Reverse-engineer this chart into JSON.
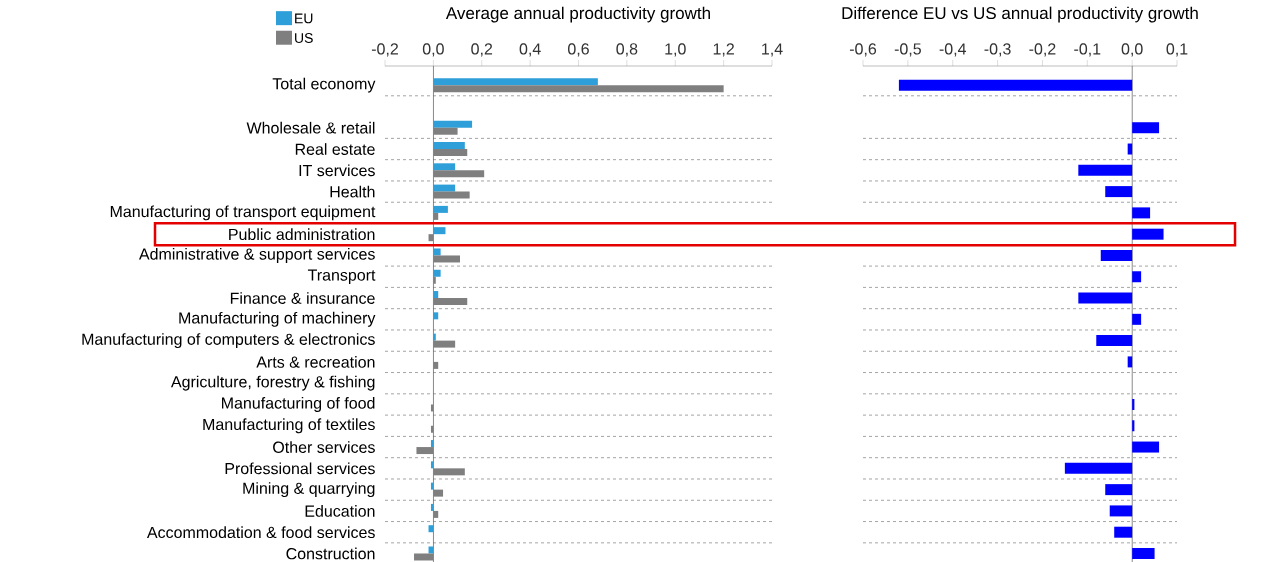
{
  "chart_data": [
    {
      "type": "bar",
      "orientation": "horizontal",
      "title": "Average annual productivity growth",
      "categories": [
        "Total economy",
        null,
        "Wholesale & retail",
        "Real estate",
        "IT services",
        "Health",
        "Manufacturing of transport equipment",
        "Public administration",
        "Administrative & support services",
        "Transport",
        "Finance & insurance",
        "Manufacturing of machinery",
        "Manufacturing of computers & electronics",
        "Arts & recreation",
        "Agriculture, forestry & fishing",
        "Manufacturing of food",
        "Manufacturing of textiles",
        "Other services",
        "Professional services",
        "Mining & quarrying",
        "Education",
        "Accommodation & food services",
        "Construction"
      ],
      "series": [
        {
          "name": "EU",
          "color": "#2e9fd8",
          "values": [
            0.68,
            null,
            0.16,
            0.13,
            0.09,
            0.09,
            0.06,
            0.05,
            0.03,
            0.03,
            0.02,
            0.02,
            0.01,
            0.0,
            0.0,
            0.0,
            0.0,
            -0.01,
            -0.01,
            -0.01,
            -0.01,
            -0.02,
            -0.02
          ]
        },
        {
          "name": "US",
          "color": "#7f7f7f",
          "values": [
            1.2,
            null,
            0.1,
            0.14,
            0.21,
            0.15,
            0.02,
            -0.02,
            0.11,
            0.01,
            0.14,
            0.0,
            0.09,
            0.02,
            0.0,
            -0.01,
            -0.01,
            -0.07,
            0.13,
            0.04,
            0.02,
            0.0,
            -0.08
          ]
        }
      ],
      "xlim": [
        -0.2,
        1.4
      ],
      "xticks": [
        {
          "value": -0.2,
          "label": "-0,2"
        },
        {
          "value": 0,
          "label": "0,0"
        },
        {
          "value": 0.2,
          "label": "0,2"
        },
        {
          "value": 0.4,
          "label": "0,4"
        },
        {
          "value": 0.6,
          "label": "0,6"
        },
        {
          "value": 0.8,
          "label": "0,8"
        },
        {
          "value": 1.0,
          "label": "1,0"
        },
        {
          "value": 1.2,
          "label": "1,2"
        },
        {
          "value": 1.4,
          "label": "1,4"
        }
      ],
      "grid": "y",
      "legend": "top left"
    },
    {
      "type": "bar",
      "orientation": "horizontal",
      "title": "Difference EU vs US annual productivity growth",
      "categories": [
        null,
        null,
        null,
        null,
        null,
        null,
        null,
        null,
        null,
        null,
        null,
        null,
        null,
        null,
        null,
        null,
        null,
        null,
        null,
        null,
        null,
        null,
        null
      ],
      "values": [
        -0.52,
        null,
        0.06,
        -0.01,
        -0.12,
        -0.06,
        0.04,
        0.07,
        -0.07,
        0.02,
        -0.12,
        0.02,
        -0.08,
        -0.01,
        0.0,
        0.005,
        0.005,
        0.06,
        -0.15,
        -0.06,
        -0.05,
        -0.04,
        0.05
      ],
      "color": "#0000ff",
      "xlim": [
        -0.6,
        0.1
      ],
      "xticks": [
        {
          "value": -0.6,
          "label": "-0,6"
        },
        {
          "value": -0.5,
          "label": "-0,5"
        },
        {
          "value": -0.4,
          "label": "-0,4"
        },
        {
          "value": -0.3,
          "label": "-0,3"
        },
        {
          "value": -0.2,
          "label": "-0,2"
        },
        {
          "value": -0.1,
          "label": "-0,1"
        },
        {
          "value": 0,
          "label": "0,0"
        },
        {
          "value": 0.1,
          "label": "0,1"
        }
      ],
      "grid": "y"
    }
  ]
}
